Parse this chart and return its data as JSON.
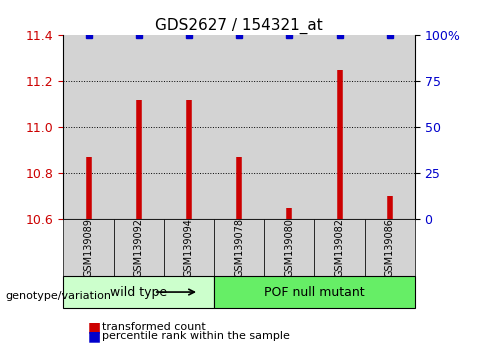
{
  "title": "GDS2627 / 154321_at",
  "samples": [
    "GSM139089",
    "GSM139092",
    "GSM139094",
    "GSM139078",
    "GSM139080",
    "GSM139082",
    "GSM139086"
  ],
  "bar_values": [
    10.87,
    11.12,
    11.12,
    10.87,
    10.65,
    11.25,
    10.7
  ],
  "blue_dot_values": [
    100,
    100,
    100,
    100,
    100,
    100,
    100
  ],
  "ylim_left": [
    10.6,
    11.4
  ],
  "ylim_right": [
    0,
    100
  ],
  "yticks_left": [
    10.6,
    10.8,
    11.0,
    11.2,
    11.4
  ],
  "yticks_right": [
    0,
    25,
    50,
    75,
    100
  ],
  "ytick_labels_right": [
    "0",
    "25",
    "50",
    "75",
    "100%"
  ],
  "bar_color": "#cc0000",
  "dot_color": "#0000cc",
  "groups": [
    {
      "label": "wild type",
      "indices": [
        0,
        1,
        2
      ],
      "color": "#ccffcc"
    },
    {
      "label": "POF null mutant",
      "indices": [
        3,
        4,
        5,
        6
      ],
      "color": "#66ee66"
    }
  ],
  "group_label_prefix": "genotype/variation",
  "legend_items": [
    {
      "color": "#cc0000",
      "marker": "s",
      "label": "transformed count"
    },
    {
      "color": "#0000cc",
      "marker": "s",
      "label": "percentile rank within the sample"
    }
  ],
  "grid_color": "#000000",
  "background_color": "#ffffff",
  "bar_bg_color": "#d3d3d3",
  "title_fontsize": 11,
  "tick_fontsize": 9
}
